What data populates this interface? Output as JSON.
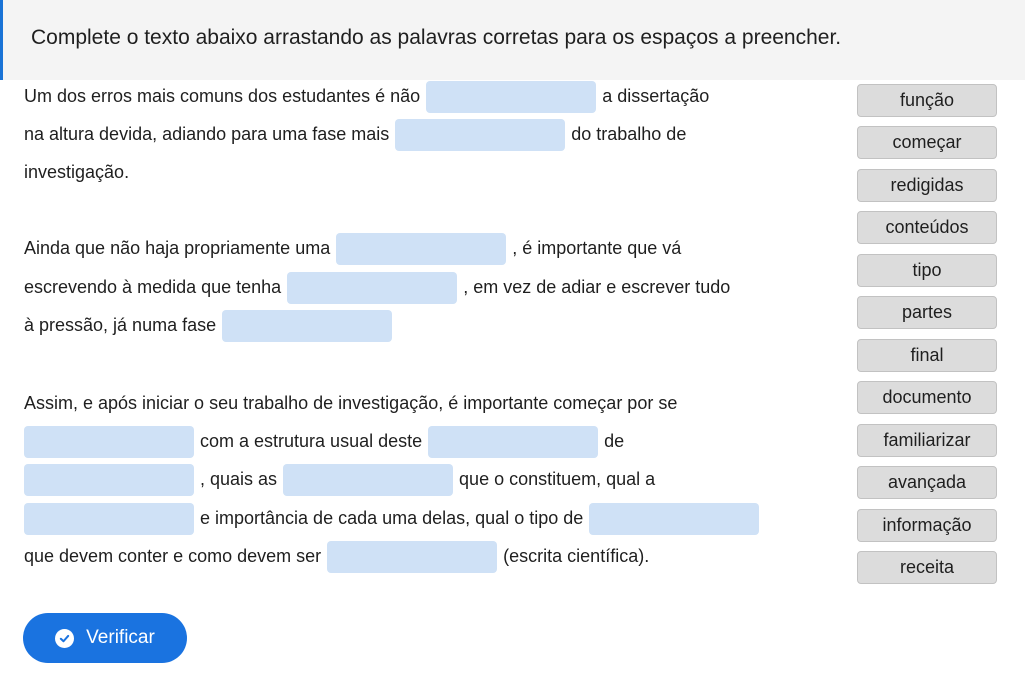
{
  "header": {
    "title": "Complete o texto abaixo arrastando as palavras corretas para os espaços a preencher."
  },
  "text": {
    "p1": {
      "l1_a": "Um dos erros mais comuns dos estudantes é não",
      "l1_b": "a dissertação",
      "l2_a": "na altura devida, adiando para uma fase mais",
      "l2_b": "do trabalho de",
      "l3": "investigação."
    },
    "p2": {
      "l1_a": "Ainda que não haja propriamente uma",
      "l1_b": ", é importante que vá",
      "l2_a": "escrevendo à medida que tenha",
      "l2_b": ", em vez de adiar e escrever tudo",
      "l3_a": "à pressão, já numa fase"
    },
    "p3": {
      "l1": "Assim, e após iniciar o seu trabalho de investigação, é importante começar por se",
      "l2_a": "com a estrutura usual deste",
      "l2_b": "de",
      "l3_a": ", quais as",
      "l3_b": "que o constituem, qual a",
      "l4_a": "e importância de cada uma delas, qual o tipo de",
      "l5_a": "que devem conter e como devem ser",
      "l5_b": "(escrita científica)."
    }
  },
  "word_bank": [
    "função",
    "começar",
    "redigidas",
    "conteúdos",
    "tipo",
    "partes",
    "final",
    "documento",
    "familiarizar",
    "avançada",
    "informação",
    "receita"
  ],
  "verify_button": {
    "label": "Verificar",
    "icon": "check-circle-icon"
  },
  "colors": {
    "accent": "#1a73e0",
    "blank": "#cfe1f6",
    "chip": "#dcdcdc"
  }
}
